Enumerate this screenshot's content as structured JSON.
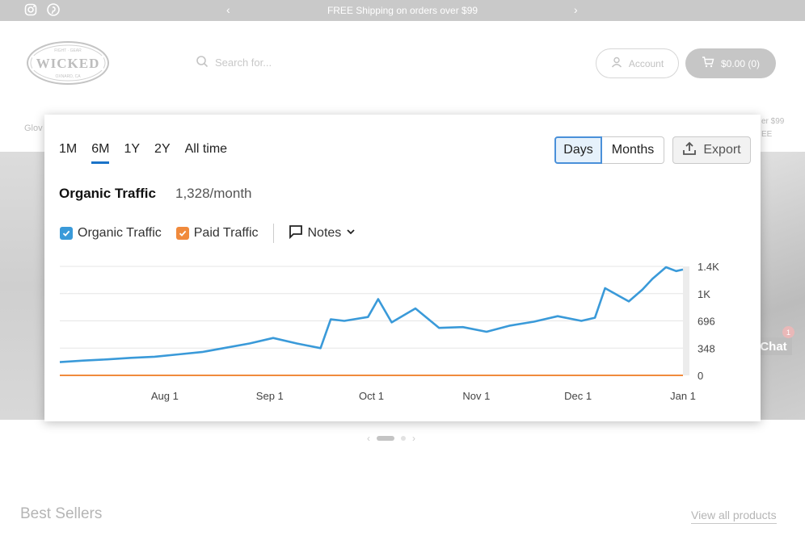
{
  "topbar": {
    "message": "FREE Shipping on orders over $99",
    "prev_arrow": "‹",
    "next_arrow": "›"
  },
  "header": {
    "search_placeholder": "Search for...",
    "account_label": "Account",
    "cart_label": "$0.00 (0)"
  },
  "nav": {
    "left_item": "Glov",
    "right_line1": "er $99",
    "right_line2": "EE"
  },
  "chat": {
    "label": "Chat",
    "badge": "1"
  },
  "slider": {
    "prev": "‹",
    "next": "›"
  },
  "sections": {
    "best_sellers": "Best Sellers",
    "view_all": "View all products"
  },
  "analytics": {
    "periods": [
      "1M",
      "6M",
      "1Y",
      "2Y",
      "All time"
    ],
    "active_period": "6M",
    "granularity": {
      "days": "Days",
      "months": "Months",
      "selected": "Days"
    },
    "export_label": "Export",
    "metric_title": "Organic Traffic",
    "metric_value": "1,328/month",
    "legend": {
      "organic": "Organic Traffic",
      "paid": "Paid Traffic",
      "notes": "Notes"
    },
    "colors": {
      "organic": "#3a9ad9",
      "paid": "#f08a3c",
      "accent": "#1a73c8"
    }
  },
  "chart_data": {
    "type": "line",
    "title": "",
    "xlabel": "",
    "ylabel": "",
    "x_ticks": [
      "Aug 1",
      "Sep 1",
      "Oct 1",
      "Nov 1",
      "Dec 1",
      "Jan 1"
    ],
    "y_ticks": [
      "0",
      "348",
      "696",
      "1K",
      "1.4K"
    ],
    "ylim": [
      0,
      1400
    ],
    "xlim": [
      "Jul 1",
      "Jan 1"
    ],
    "grid": true,
    "series": [
      {
        "name": "Organic Traffic",
        "color": "#3a9ad9",
        "x": [
          "Jul 1",
          "Jul 8",
          "Jul 15",
          "Jul 22",
          "Jul 29",
          "Aug 5",
          "Aug 12",
          "Aug 19",
          "Aug 26",
          "Sep 2",
          "Sep 9",
          "Sep 16",
          "Sep 19",
          "Sep 23",
          "Sep 30",
          "Oct 3",
          "Oct 7",
          "Oct 14",
          "Oct 21",
          "Oct 28",
          "Nov 4",
          "Nov 11",
          "Nov 18",
          "Nov 25",
          "Dec 2",
          "Dec 6",
          "Dec 9",
          "Dec 16",
          "Dec 20",
          "Dec 23",
          "Dec 27",
          "Dec 30",
          "Jan 1"
        ],
        "values": [
          170,
          190,
          205,
          225,
          240,
          270,
          300,
          355,
          410,
          480,
          410,
          350,
          720,
          700,
          750,
          980,
          680,
          860,
          610,
          620,
          560,
          640,
          690,
          760,
          700,
          740,
          1120,
          950,
          1100,
          1240,
          1390,
          1340,
          1360
        ]
      },
      {
        "name": "Paid Traffic",
        "color": "#f08a3c",
        "x": [
          "Jul 1",
          "Jan 1"
        ],
        "values": [
          0,
          0
        ]
      }
    ]
  }
}
